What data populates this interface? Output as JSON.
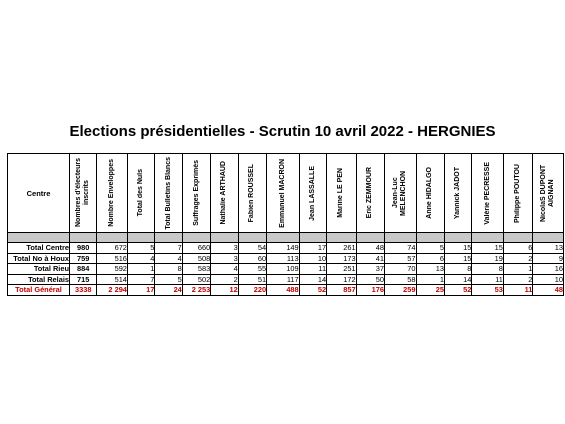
{
  "title": "Elections présidentielles - Scrutin 10 avril 2022 - HERGNIES",
  "headers": {
    "centre": "Centre",
    "columns": [
      "Nombres d'électeurs inscrits",
      "Nombre Enveloppes",
      "Total des Nuls",
      "Total Bulletins Blancs",
      "Suffrages Exprimés",
      "Nathalie ARTHAUD",
      "Fabien ROUSSEL",
      "Emmanuel MACRON",
      "Jean LASSALLE",
      "Marine LE PEN",
      "Eric ZEMMOUR",
      "Jean-Luc MELENCHON",
      "Anne HIDALGO",
      "Yannick JADOT",
      "Valérie PECRESSE",
      "Philippe POUTOU",
      "NicolaS DUPONT AIGNAN"
    ]
  },
  "rows": [
    {
      "label": "Total Centre",
      "values": [
        "980",
        "672",
        "5",
        "7",
        "660",
        "3",
        "54",
        "149",
        "17",
        "261",
        "48",
        "74",
        "5",
        "15",
        "15",
        "6",
        "13"
      ]
    },
    {
      "label": "Total No à Houx",
      "values": [
        "759",
        "516",
        "4",
        "4",
        "508",
        "3",
        "60",
        "113",
        "10",
        "173",
        "41",
        "57",
        "6",
        "15",
        "19",
        "2",
        "9"
      ]
    },
    {
      "label": "Total Rieu",
      "values": [
        "884",
        "592",
        "1",
        "8",
        "583",
        "4",
        "55",
        "109",
        "11",
        "251",
        "37",
        "70",
        "13",
        "8",
        "8",
        "1",
        "16"
      ]
    },
    {
      "label": "Total Relais",
      "values": [
        "715",
        "514",
        "7",
        "5",
        "502",
        "2",
        "51",
        "117",
        "14",
        "172",
        "50",
        "58",
        "1",
        "14",
        "11",
        "2",
        "10"
      ]
    }
  ],
  "total": {
    "label": "Total Général",
    "values": [
      "3338",
      "2 294",
      "17",
      "24",
      "2 253",
      "12",
      "220",
      "488",
      "52",
      "857",
      "176",
      "259",
      "25",
      "52",
      "53",
      "11",
      "48"
    ]
  }
}
